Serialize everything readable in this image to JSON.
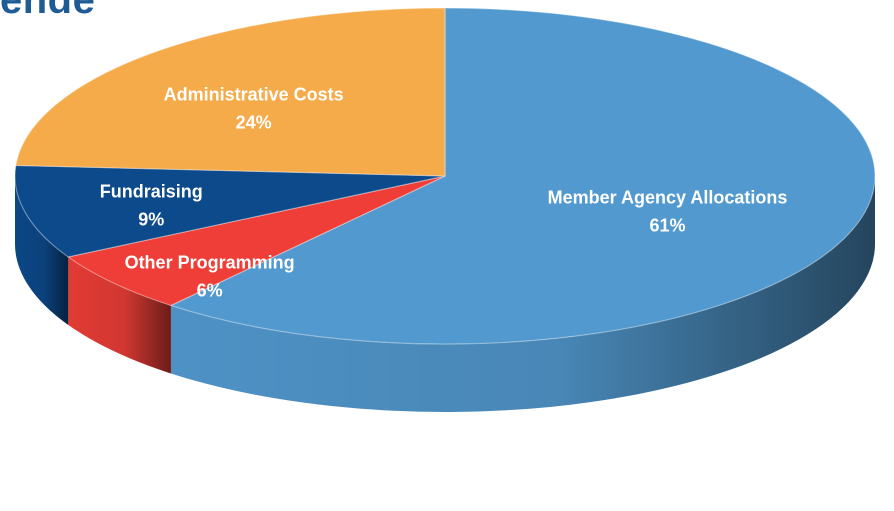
{
  "page": {
    "title": "ende"
  },
  "chart_data": {
    "type": "pie",
    "style": "3d",
    "slices": [
      {
        "label": "Member Agency Allocations",
        "value": 61,
        "display": "61%",
        "color": "#5299cf"
      },
      {
        "label": "Other Programming",
        "value": 6,
        "display": "6%",
        "color": "#ee3e37"
      },
      {
        "label": "Fundraising",
        "value": 9,
        "display": "9%",
        "color": "#0c4a8c"
      },
      {
        "label": "Administrative Costs",
        "value": 24,
        "display": "24%",
        "color": "#f6ab4b"
      }
    ]
  }
}
